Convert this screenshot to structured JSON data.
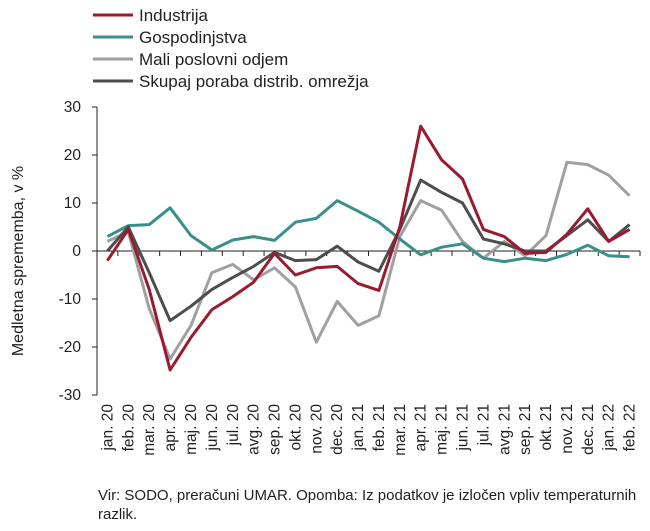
{
  "chart_data": {
    "type": "line",
    "title": "",
    "xlabel": "",
    "ylabel": "Medletna sprememba, v %",
    "ylim": [
      -30,
      30
    ],
    "yticks": [
      30,
      20,
      10,
      0,
      -10,
      -20,
      -30
    ],
    "grid": false,
    "legend_position": "top-left",
    "categories": [
      "jan. 20",
      "feb. 20",
      "mar. 20",
      "apr. 20",
      "maj. 20",
      "jun. 20",
      "jul. 20",
      "avg. 20",
      "sep. 20",
      "okt. 20",
      "nov. 20",
      "dec. 20",
      "jan. 21",
      "feb. 21",
      "mar. 21",
      "apr. 21",
      "maj. 21",
      "jun. 21",
      "jul. 21",
      "avg. 21",
      "sep. 21",
      "okt. 21",
      "nov. 21",
      "dec. 21",
      "jan. 22",
      "feb. 22"
    ],
    "series": [
      {
        "name": "Industrija",
        "color": "#9a1b30",
        "values": [
          -2.0,
          4.5,
          -8.0,
          -24.8,
          -18.0,
          -12.2,
          -9.5,
          -6.5,
          -0.5,
          -5.0,
          -3.5,
          -3.2,
          -6.8,
          -8.2,
          5.0,
          26.0,
          19.0,
          15.0,
          4.5,
          3.0,
          -0.5,
          -0.3,
          3.5,
          8.8,
          2.0,
          4.5
        ]
      },
      {
        "name": "Gospodinjstva",
        "color": "#3a8f8a",
        "values": [
          3.0,
          5.3,
          5.5,
          9.0,
          3.2,
          0.2,
          2.3,
          3.0,
          2.2,
          6.0,
          6.8,
          10.5,
          8.3,
          6.0,
          2.5,
          -0.8,
          0.8,
          1.5,
          -1.5,
          -2.2,
          -1.5,
          -2.0,
          -0.7,
          1.2,
          -1.0,
          -1.2
        ]
      },
      {
        "name": "Mali poslovni odjem",
        "color": "#a0a0a0",
        "values": [
          2.0,
          4.0,
          -12.0,
          -22.5,
          -15.5,
          -4.5,
          -2.8,
          -6.0,
          -3.5,
          -7.5,
          -19.0,
          -10.5,
          -15.5,
          -13.5,
          3.0,
          10.5,
          8.5,
          2.0,
          -1.5,
          2.0,
          -1.0,
          3.2,
          18.5,
          18.0,
          15.8,
          11.5
        ]
      },
      {
        "name": "Skupaj poraba distrib. omrežja",
        "color": "#4d4d4d",
        "values": [
          0.0,
          5.0,
          -4.5,
          -14.5,
          -11.5,
          -8.0,
          -5.5,
          -3.2,
          -0.3,
          -2.0,
          -1.8,
          1.0,
          -2.3,
          -4.2,
          4.5,
          14.8,
          12.2,
          10.0,
          2.5,
          1.5,
          0.0,
          0.0,
          3.2,
          6.5,
          2.0,
          5.5
        ]
      }
    ]
  },
  "footer": {
    "source_note": "Vir: SODO, preračuni UMAR. Opomba: Iz podatkov je izločen vpliv temperaturnih razlik."
  }
}
